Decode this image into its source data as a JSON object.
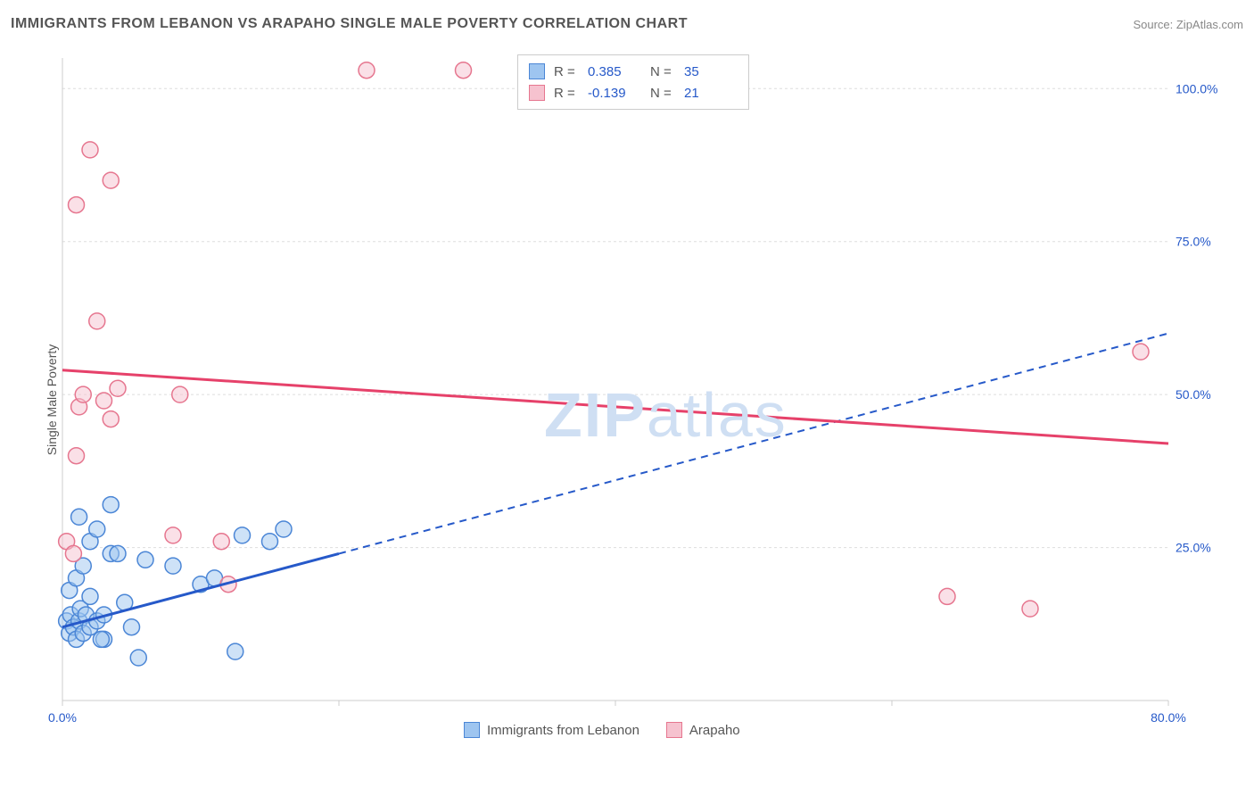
{
  "header": {
    "title": "IMMIGRANTS FROM LEBANON VS ARAPAHO SINGLE MALE POVERTY CORRELATION CHART",
    "source": "Source: ZipAtlas.com"
  },
  "y_axis_label": "Single Male Poverty",
  "watermark_prefix": "ZIP",
  "watermark_suffix": "atlas",
  "chart": {
    "type": "scatter",
    "xlim": [
      0,
      80
    ],
    "ylim": [
      0,
      105
    ],
    "x_ticks": [
      0,
      20,
      40,
      60,
      80
    ],
    "x_tick_labels": [
      "0.0%",
      "",
      "",
      "",
      "80.0%"
    ],
    "y_ticks": [
      25,
      50,
      75,
      100
    ],
    "y_tick_labels": [
      "25.0%",
      "50.0%",
      "75.0%",
      "100.0%"
    ],
    "grid_color": "#dddddd",
    "axis_color": "#cccccc",
    "background_color": "#ffffff",
    "series": [
      {
        "name": "Immigrants from Lebanon",
        "color_fill": "#9ec5f0",
        "color_stroke": "#4b86d6",
        "marker_radius": 9,
        "R": "0.385",
        "N": "35",
        "trend": {
          "x1": 0,
          "y1": 12,
          "x2": 80,
          "y2": 60,
          "solid_until_x": 20,
          "color": "#2659c9"
        },
        "points": [
          [
            0.3,
            13
          ],
          [
            0.5,
            11
          ],
          [
            0.6,
            14
          ],
          [
            0.8,
            12
          ],
          [
            1.0,
            10
          ],
          [
            1.2,
            13
          ],
          [
            1.3,
            15
          ],
          [
            1.5,
            11
          ],
          [
            1.7,
            14
          ],
          [
            2.0,
            12
          ],
          [
            0.5,
            18
          ],
          [
            1.0,
            20
          ],
          [
            1.5,
            22
          ],
          [
            2.0,
            17
          ],
          [
            2.5,
            13
          ],
          [
            3.0,
            10
          ],
          [
            3.5,
            24
          ],
          [
            4.0,
            24
          ],
          [
            5.0,
            12
          ],
          [
            5.5,
            7
          ],
          [
            1.2,
            30
          ],
          [
            2.0,
            26
          ],
          [
            2.5,
            28
          ],
          [
            3.0,
            14
          ],
          [
            4.5,
            16
          ],
          [
            6.0,
            23
          ],
          [
            8.0,
            22
          ],
          [
            10.0,
            19
          ],
          [
            11.0,
            20
          ],
          [
            12.5,
            8
          ],
          [
            13.0,
            27
          ],
          [
            15.0,
            26
          ],
          [
            16.0,
            28
          ],
          [
            3.5,
            32
          ],
          [
            2.8,
            10
          ]
        ]
      },
      {
        "name": "Arapaho",
        "color_fill": "#f6c2cf",
        "color_stroke": "#e6768f",
        "marker_radius": 9,
        "R": "-0.139",
        "N": "21",
        "trend": {
          "x1": 0,
          "y1": 54,
          "x2": 80,
          "y2": 42,
          "solid_until_x": 80,
          "color": "#e6416a"
        },
        "points": [
          [
            0.3,
            26
          ],
          [
            0.8,
            24
          ],
          [
            1.0,
            40
          ],
          [
            1.2,
            48
          ],
          [
            1.5,
            50
          ],
          [
            3.0,
            49
          ],
          [
            3.5,
            46
          ],
          [
            4.0,
            51
          ],
          [
            8.5,
            50
          ],
          [
            8.0,
            27
          ],
          [
            11.5,
            26
          ],
          [
            12.0,
            19
          ],
          [
            1.0,
            81
          ],
          [
            2.0,
            90
          ],
          [
            3.5,
            85
          ],
          [
            22.0,
            103
          ],
          [
            29.0,
            103
          ],
          [
            64.0,
            17
          ],
          [
            70.0,
            15
          ],
          [
            78.0,
            57
          ],
          [
            2.5,
            62
          ]
        ]
      }
    ]
  },
  "legend_bottom": [
    {
      "label": "Immigrants from Lebanon",
      "fill": "#9ec5f0",
      "stroke": "#4b86d6"
    },
    {
      "label": "Arapaho",
      "fill": "#f6c2cf",
      "stroke": "#e6768f"
    }
  ]
}
